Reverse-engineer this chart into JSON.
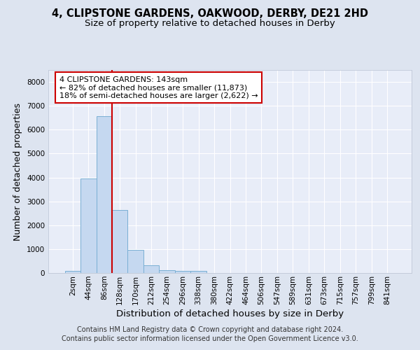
{
  "title": "4, CLIPSTONE GARDENS, OAKWOOD, DERBY, DE21 2HD",
  "subtitle": "Size of property relative to detached houses in Derby",
  "xlabel": "Distribution of detached houses by size in Derby",
  "ylabel": "Number of detached properties",
  "footer_line1": "Contains HM Land Registry data © Crown copyright and database right 2024.",
  "footer_line2": "Contains public sector information licensed under the Open Government Licence v3.0.",
  "bar_labels": [
    "2sqm",
    "44sqm",
    "86sqm",
    "128sqm",
    "170sqm",
    "212sqm",
    "254sqm",
    "296sqm",
    "338sqm",
    "380sqm",
    "422sqm",
    "464sqm",
    "506sqm",
    "547sqm",
    "589sqm",
    "631sqm",
    "673sqm",
    "715sqm",
    "757sqm",
    "799sqm",
    "841sqm"
  ],
  "bar_values": [
    75,
    3970,
    6580,
    2630,
    960,
    310,
    130,
    100,
    75,
    0,
    0,
    0,
    0,
    0,
    0,
    0,
    0,
    0,
    0,
    0,
    0
  ],
  "bar_color": "#c5d8f0",
  "bar_edge_color": "#7aafd4",
  "ylim": [
    0,
    8500
  ],
  "yticks": [
    0,
    1000,
    2000,
    3000,
    4000,
    5000,
    6000,
    7000,
    8000
  ],
  "vline_x": 2.5,
  "vline_color": "#cc0000",
  "annotation_text": "4 CLIPSTONE GARDENS: 143sqm\n← 82% of detached houses are smaller (11,873)\n18% of semi-detached houses are larger (2,622) →",
  "annotation_box_color": "#cc0000",
  "bg_color": "#dde4f0",
  "plot_bg_color": "#e8edf8",
  "grid_color": "#ffffff",
  "title_fontsize": 10.5,
  "subtitle_fontsize": 9.5,
  "axis_label_fontsize": 9,
  "tick_fontsize": 7.5,
  "annotation_fontsize": 8,
  "footer_fontsize": 7
}
